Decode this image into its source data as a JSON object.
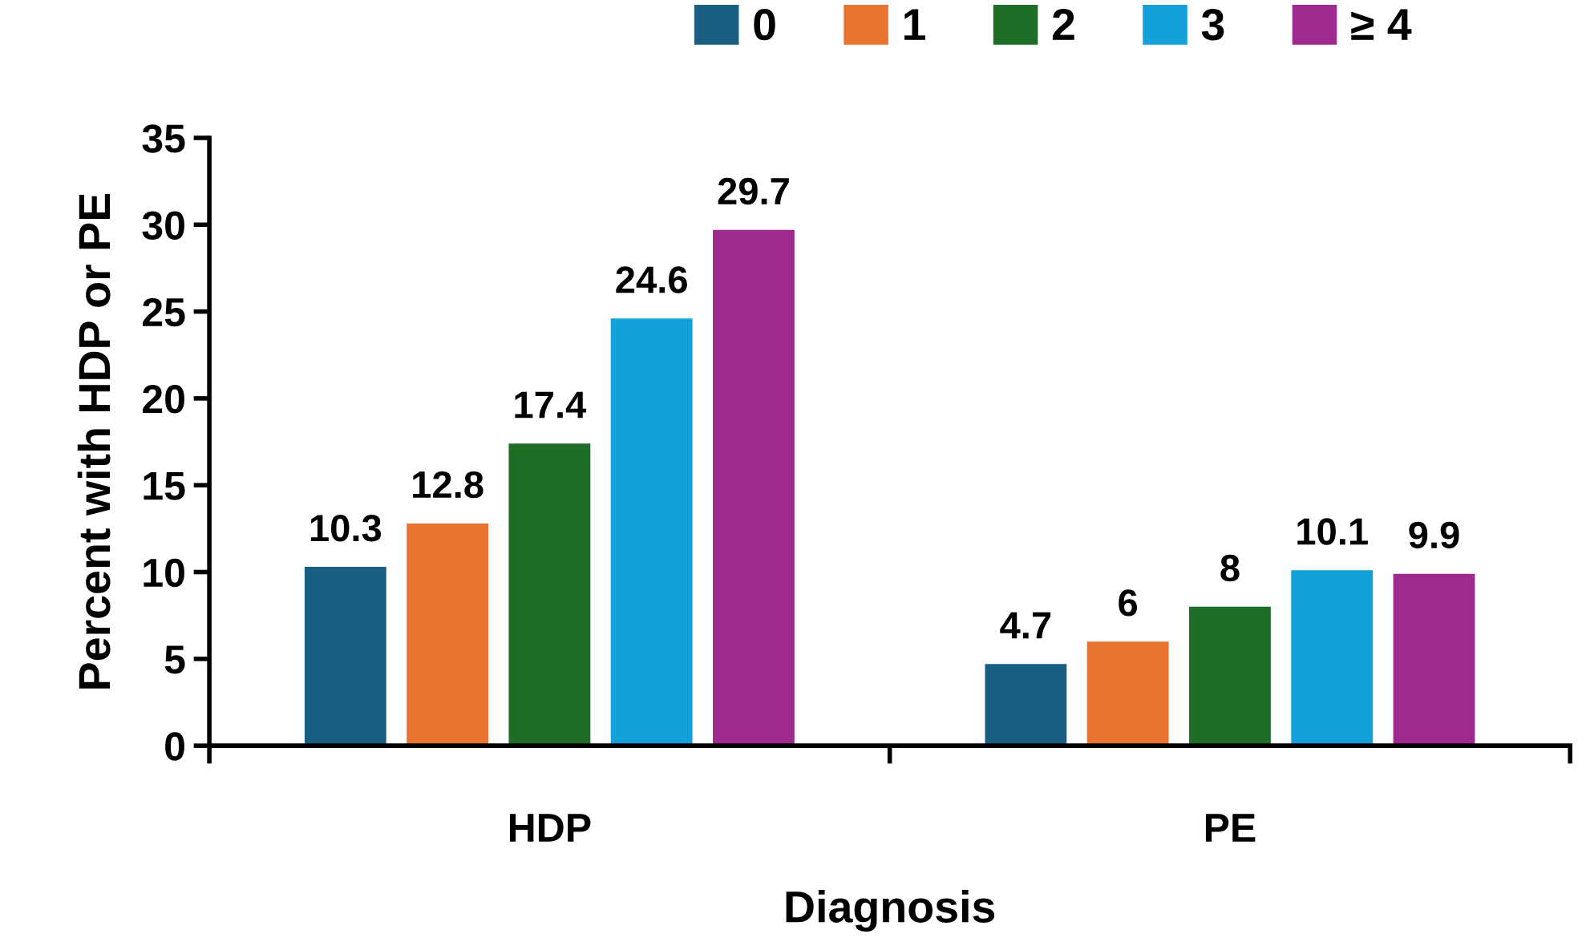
{
  "chart_data": {
    "type": "bar",
    "xlabel": "Diagnosis",
    "ylabel": "Percent with HDP or PE",
    "categories": [
      "HDP",
      "PE"
    ],
    "series": [
      {
        "name": "0",
        "color": "#1a5f82",
        "values": [
          10.3,
          4.7
        ]
      },
      {
        "name": "1",
        "color": "#e87432",
        "values": [
          12.8,
          6
        ]
      },
      {
        "name": "2",
        "color": "#1e6e28",
        "values": [
          17.4,
          8
        ]
      },
      {
        "name": "3",
        "color": "#14a0d8",
        "values": [
          24.6,
          10.1
        ]
      },
      {
        "name": "≥ 4",
        "color": "#9e2a8e",
        "values": [
          29.7,
          9.9
        ]
      }
    ],
    "ylim": [
      0,
      35
    ],
    "yticks": [
      0,
      5,
      10,
      15,
      20,
      25,
      30,
      35
    ],
    "grid": false,
    "legend": "top",
    "data_labels": true
  }
}
